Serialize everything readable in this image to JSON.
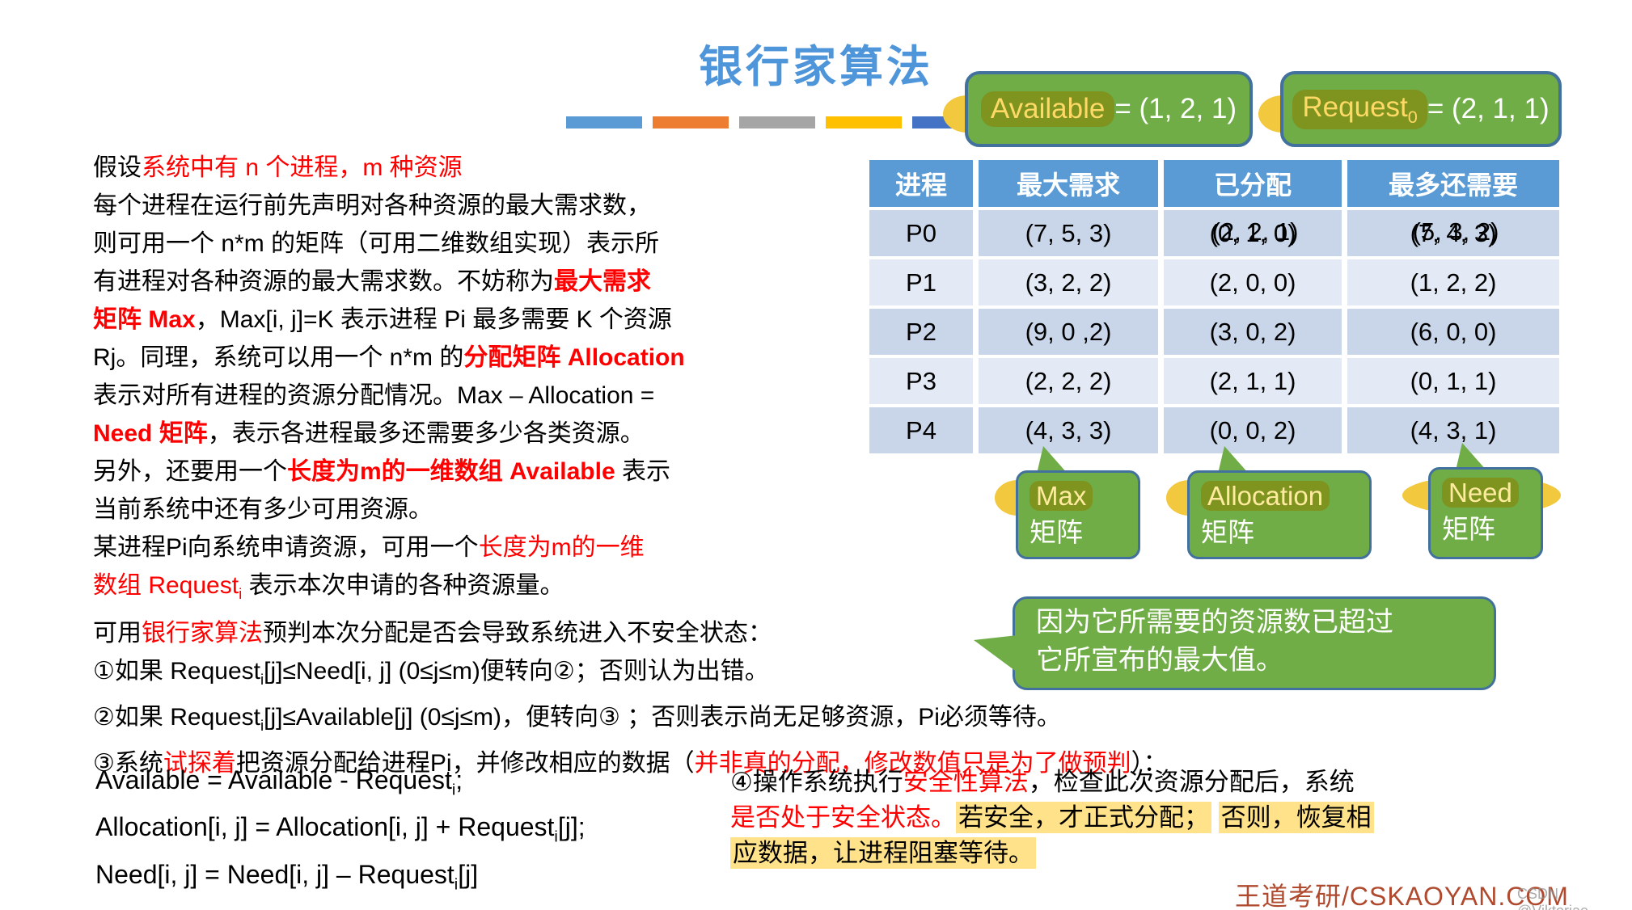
{
  "title": "银行家算法",
  "badges": {
    "available": {
      "word": "Available",
      "rest": " = (1, 2, 1)"
    },
    "request": {
      "word": "Request",
      "sub": "0",
      "rest": " = (2, 1, 1)"
    }
  },
  "table": {
    "headers": [
      "进程",
      "最大需求",
      "已分配",
      "最多还需要"
    ],
    "rows": [
      [
        "P0",
        "(7, 5, 3)",
        {
          "old": "(0, 1, 0)",
          "new": "(2, 2, 1)"
        },
        {
          "old": "(7, 4, 3)",
          "new": "(5, 3, 2)"
        }
      ],
      [
        "P1",
        "(3, 2, 2)",
        "(2, 0, 0)",
        "(1, 2, 2)"
      ],
      [
        "P2",
        "(9, 0 ,2)",
        "(3, 0, 2)",
        "(6, 0, 0)"
      ],
      [
        "P3",
        "(2, 2, 2)",
        "(2, 1, 1)",
        "(0, 1, 1)"
      ],
      [
        "P4",
        "(4, 3, 3)",
        "(0, 0, 2)",
        "(4, 3, 1)"
      ]
    ]
  },
  "bubbles": {
    "max": {
      "word": "Max",
      "label": "矩阵"
    },
    "allocation": {
      "word": "Allocation",
      "label": "矩阵"
    },
    "need": {
      "word": "Need",
      "label": "矩阵"
    }
  },
  "reason_callout": {
    "line1": "因为它所需要的资源数已超过",
    "line2": "它所宣布的最大值。"
  },
  "paragraphs": {
    "intro": [
      [
        {
          "t": "假设",
          "s": "k"
        },
        {
          "t": "系统中有 n 个进程，m 种资源",
          "s": "r"
        }
      ],
      [
        {
          "t": "每个进程在运行前先声明对各种资源的最大需求数，",
          "s": "k"
        }
      ],
      [
        {
          "t": "则可用一个 n*m 的矩阵（可用二维数组实现）表示所",
          "s": "k"
        }
      ],
      [
        {
          "t": "有进程对各种资源的最大需求数。不妨称为",
          "s": "k"
        },
        {
          "t": "最大需求",
          "s": "rb"
        }
      ],
      [
        {
          "t": "矩阵 Max",
          "s": "rb"
        },
        {
          "t": "，Max[i, j]=K 表示进程 Pi 最多需要 K 个资源",
          "s": "k"
        }
      ],
      [
        {
          "t": "Rj。同理，系统可以用一个 n*m 的",
          "s": "k"
        },
        {
          "t": "分配矩阵 Allocation",
          "s": "rb"
        }
      ],
      [
        {
          "t": "表示对所有进程的资源分配情况。Max – Allocation =",
          "s": "k"
        }
      ],
      [
        {
          "t": "Need 矩阵",
          "s": "rb"
        },
        {
          "t": "，表示各进程最多还需要多少各类资源。",
          "s": "k"
        }
      ],
      [
        {
          "t": "另外，还要用一个",
          "s": "k"
        },
        {
          "t": "长度为m的一维数组 Available",
          "s": "rb"
        },
        {
          "t": " 表示",
          "s": "k"
        }
      ],
      [
        {
          "t": "当前系统中还有多少可用资源。",
          "s": "k"
        }
      ],
      [
        {
          "t": "某进程Pi向系统申请资源，可用一个",
          "s": "k"
        },
        {
          "t": "长度为m的一维",
          "s": "r"
        }
      ],
      [
        {
          "t": "数组 Request",
          "s": "r"
        },
        {
          "t": "i",
          "s": "r",
          "sub": true
        },
        {
          "t": " 表示本次申请的各种资源量。",
          "s": "k"
        }
      ]
    ],
    "steps": [
      [
        {
          "t": "可用",
          "s": "k"
        },
        {
          "t": "银行家算法",
          "s": "r"
        },
        {
          "t": "预判本次分配是否会导致系统进入不安全状态：",
          "s": "k"
        }
      ],
      [
        {
          "t": "①如果 Request",
          "s": "k"
        },
        {
          "t": "i",
          "s": "k",
          "sub": true
        },
        {
          "t": "[j]≤Need[i, j] (0≤j≤m)便转向②；否则认为出错。",
          "s": "k"
        }
      ],
      [
        {
          "t": "②如果 Request",
          "s": "k"
        },
        {
          "t": "i",
          "s": "k",
          "sub": true
        },
        {
          "t": "[j]≤Available[j] (0≤j≤m)，便转向③ ；否则表示尚无足够资源，Pi必须等待。",
          "s": "k"
        }
      ],
      [
        {
          "t": "③系统",
          "s": "k"
        },
        {
          "t": "试探着",
          "s": "r"
        },
        {
          "t": "把资源分配给进程Pi，并修改相应的数据（",
          "s": "k"
        },
        {
          "t": "并非真的分配，修改数值只是为了做预判",
          "s": "r"
        },
        {
          "t": "）：",
          "s": "k"
        }
      ]
    ],
    "formulas": [
      [
        {
          "t": "Available = Available - Request",
          "s": "k"
        },
        {
          "t": "i",
          "s": "k",
          "sub": true
        },
        {
          "t": ";",
          "s": "k"
        }
      ],
      [
        {
          "t": "Allocation[i, j] = Allocation[i, j] + Request",
          "s": "k"
        },
        {
          "t": "i",
          "s": "k",
          "sub": true
        },
        {
          "t": "[j];",
          "s": "k"
        }
      ],
      [
        {
          "t": "Need[i, j] = Need[i, j] – Request",
          "s": "k"
        },
        {
          "t": "i",
          "s": "k",
          "sub": true
        },
        {
          "t": "[j]",
          "s": "k"
        }
      ]
    ],
    "step4": [
      [
        {
          "t": "④操作系统执行",
          "s": "k"
        },
        {
          "t": "安全性算法",
          "s": "r"
        },
        {
          "t": "，检查此次资源分配后，系统",
          "s": "k"
        }
      ],
      [
        {
          "t": "是否处于安全状态。",
          "s": "r"
        },
        {
          "t": "若安全，才正式分配；",
          "s": "hl"
        },
        {
          "t": " ",
          "s": "k"
        },
        {
          "t": "否则，恢复相",
          "s": "hl"
        }
      ],
      [
        {
          "t": "应数据，让进程阻塞等待。",
          "s": "hl"
        }
      ]
    ]
  },
  "watermark": "王道考研/CSKAOYAN.COM",
  "csdn_watermark": "CSDN @Viktoriae",
  "decor_bars": [
    "#5B9BD5",
    "#ED7D31",
    "#A5A5A5",
    "#FFC000",
    "#4472C4"
  ],
  "colors": {
    "title_blue": "#4E95D9",
    "table_header_blue": "#5B9BD5",
    "row_band_dark": "#C9D6EA",
    "row_band_light": "#E3EAF5",
    "callout_green": "#70AD47",
    "callout_border_blue": "#41719C",
    "marker_olive": "#7E941E",
    "marker_yellow_text": "#FFD966",
    "highlight_yellow": "#FFE289",
    "emphasis_red": "#FF0000",
    "watermark_red": "#B04A2F"
  }
}
